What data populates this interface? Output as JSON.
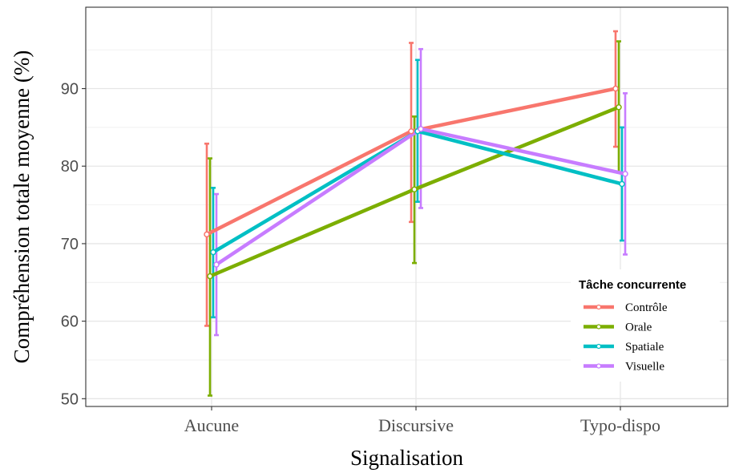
{
  "chart_data": {
    "type": "line",
    "xlabel": "Signalisation",
    "ylabel": "Compréhension totale moyenne (%)",
    "categories": [
      "Aucune",
      "Discursive",
      "Typo-dispo"
    ],
    "ylim": [
      49,
      100.5
    ],
    "yticks": [
      50,
      60,
      70,
      80,
      90
    ],
    "grid": true,
    "error_bars": true,
    "legend": {
      "title": "Tâche concurrente",
      "placement": "bottom-right"
    },
    "series": [
      {
        "name": "Contrôle",
        "color": "#F8766D",
        "values": [
          71.2,
          84.5,
          90.0
        ],
        "lower": [
          59.4,
          72.8,
          82.5
        ],
        "upper": [
          82.9,
          95.9,
          97.4
        ]
      },
      {
        "name": "Orale",
        "color": "#7CAE00",
        "values": [
          65.8,
          77.0,
          87.6
        ],
        "lower": [
          50.4,
          67.5,
          79.2
        ],
        "upper": [
          81.0,
          86.4,
          96.1
        ]
      },
      {
        "name": "Spatiale",
        "color": "#00BFC4",
        "values": [
          68.9,
          84.5,
          77.7
        ],
        "lower": [
          60.5,
          75.4,
          70.4
        ],
        "upper": [
          77.2,
          93.7,
          85.0
        ]
      },
      {
        "name": "Visuelle",
        "color": "#C77CFF",
        "values": [
          67.3,
          84.8,
          79.0
        ],
        "lower": [
          58.2,
          74.6,
          68.6
        ],
        "upper": [
          76.4,
          95.1,
          89.4
        ]
      }
    ]
  }
}
